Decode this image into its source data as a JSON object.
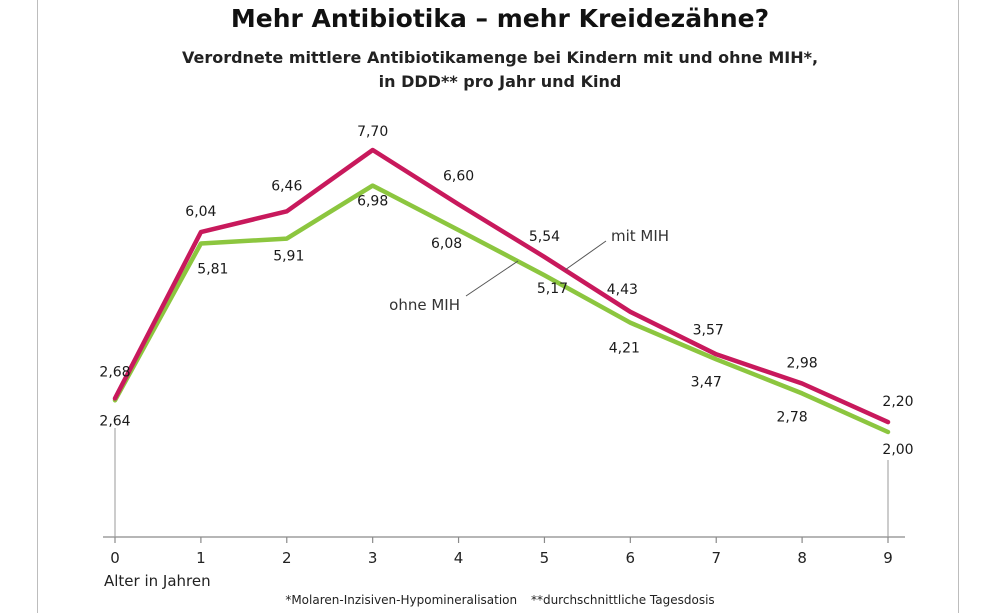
{
  "chart_data": {
    "type": "line",
    "title": "Mehr Antibiotika – mehr Kreidezähne?",
    "subtitle": [
      "Verordnete mittlere Antibiotikamenge bei Kindern mit und ohne MIH*,",
      "in DDD** pro Jahr und Kind"
    ],
    "xlabel": "Alter in Jahren",
    "ylabel": "",
    "x": [
      0,
      1,
      2,
      3,
      4,
      5,
      6,
      7,
      8,
      9
    ],
    "xtick_labels": [
      "0",
      "1",
      "2",
      "3",
      "4",
      "5",
      "6",
      "7",
      "8",
      "9"
    ],
    "ylim": [
      0,
      9
    ],
    "grid": false,
    "series": [
      {
        "name": "mit MIH",
        "color": "#c8195c",
        "values": [
          2.68,
          6.04,
          6.46,
          7.7,
          6.6,
          5.54,
          4.43,
          3.57,
          2.98,
          2.2
        ],
        "labels": [
          "2,68",
          "6,04",
          "6,46",
          "7,70",
          "6,60",
          "5,54",
          "4,43",
          "3,57",
          "2,98",
          "2,20"
        ]
      },
      {
        "name": "ohne MIH",
        "color": "#8cc63f",
        "values": [
          2.64,
          5.81,
          5.91,
          6.98,
          6.08,
          5.17,
          4.21,
          3.47,
          2.78,
          2.0
        ],
        "labels": [
          "2,64",
          "5,81",
          "5,91",
          "6,98",
          "6,08",
          "5,17",
          "4,21",
          "3,47",
          "2,78",
          "2,00"
        ]
      }
    ],
    "footnotes": [
      "*Molaren-Inzisiven-Hypomineralisation",
      "**durchschnittliche Tagesdosis"
    ]
  }
}
